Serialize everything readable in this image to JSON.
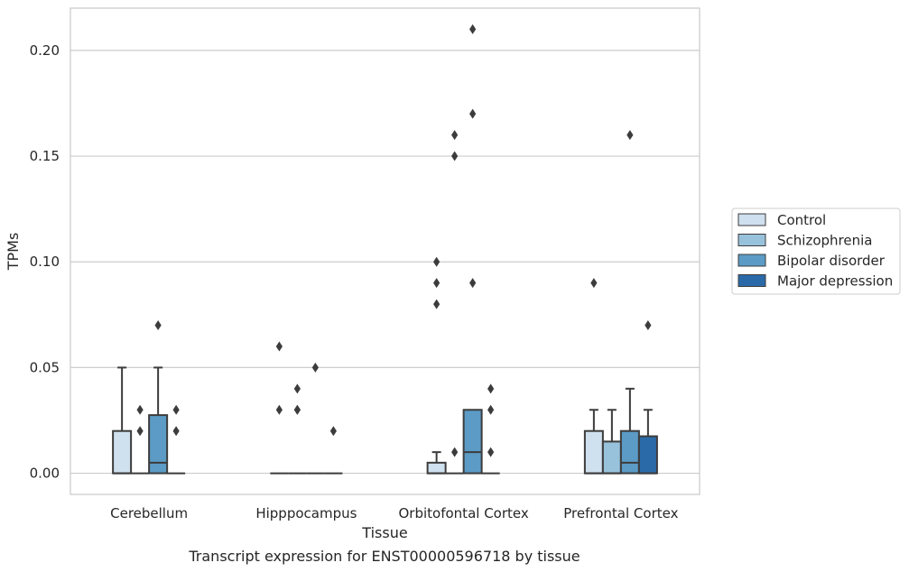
{
  "chart_data": {
    "type": "box",
    "xlabel": "Tissue",
    "ylabel": "TPMs",
    "caption": "Transcript expression for ENST00000596718 by tissue",
    "ylim": [
      -0.01,
      0.22
    ],
    "yticks": [
      0.0,
      0.05,
      0.1,
      0.15,
      0.2
    ],
    "ytick_labels": [
      "0.00",
      "0.05",
      "0.10",
      "0.15",
      "0.20"
    ],
    "grid": "y",
    "legend_position": "right",
    "categories": [
      "Cerebellum",
      "Hipppocampus",
      "Orbitofontal Cortex",
      "Prefrontal Cortex"
    ],
    "series": [
      {
        "name": "Control",
        "color": "#cfe0ef",
        "boxes": [
          {
            "q1": 0.0,
            "median": 0.0,
            "q3": 0.02,
            "whisker_low": 0.0,
            "whisker_high": 0.05,
            "outliers": []
          },
          {
            "q1": 0.0,
            "median": 0.0,
            "q3": 0.0,
            "whisker_low": 0.0,
            "whisker_high": 0.0,
            "outliers": [
              0.03,
              0.06
            ]
          },
          {
            "q1": 0.0,
            "median": 0.0,
            "q3": 0.005,
            "whisker_low": 0.0,
            "whisker_high": 0.01,
            "outliers": [
              0.08,
              0.09,
              0.1
            ]
          },
          {
            "q1": 0.0,
            "median": 0.0,
            "q3": 0.02,
            "whisker_low": 0.0,
            "whisker_high": 0.03,
            "outliers": [
              0.09
            ]
          }
        ]
      },
      {
        "name": "Schizophrenia",
        "color": "#98c2db",
        "boxes": [
          {
            "q1": 0.0,
            "median": 0.0,
            "q3": 0.0,
            "whisker_low": 0.0,
            "whisker_high": 0.0,
            "outliers": [
              0.02,
              0.03
            ]
          },
          {
            "q1": 0.0,
            "median": 0.0,
            "q3": 0.0,
            "whisker_low": 0.0,
            "whisker_high": 0.0,
            "outliers": [
              0.03,
              0.03,
              0.04
            ]
          },
          {
            "q1": 0.0,
            "median": 0.0,
            "q3": 0.0,
            "whisker_low": 0.0,
            "whisker_high": 0.0,
            "outliers": [
              0.01,
              0.15,
              0.16
            ]
          },
          {
            "q1": 0.0,
            "median": 0.0,
            "q3": 0.015,
            "whisker_low": 0.0,
            "whisker_high": 0.03,
            "outliers": []
          }
        ]
      },
      {
        "name": "Bipolar disorder",
        "color": "#5b9bc6",
        "boxes": [
          {
            "q1": 0.0,
            "median": 0.005,
            "q3": 0.0275,
            "whisker_low": 0.0,
            "whisker_high": 0.05,
            "outliers": [
              0.07
            ]
          },
          {
            "q1": 0.0,
            "median": 0.0,
            "q3": 0.0,
            "whisker_low": 0.0,
            "whisker_high": 0.0,
            "outliers": [
              0.05
            ]
          },
          {
            "q1": 0.0,
            "median": 0.01,
            "q3": 0.03,
            "whisker_low": 0.0,
            "whisker_high": 0.03,
            "outliers": [
              0.09,
              0.17,
              0.21
            ]
          },
          {
            "q1": 0.0,
            "median": 0.005,
            "q3": 0.02,
            "whisker_low": 0.0,
            "whisker_high": 0.04,
            "outliers": [
              0.16
            ]
          }
        ]
      },
      {
        "name": "Major depression",
        "color": "#2b6aa8",
        "boxes": [
          {
            "q1": 0.0,
            "median": 0.0,
            "q3": 0.0,
            "whisker_low": 0.0,
            "whisker_high": 0.0,
            "outliers": [
              0.02,
              0.03
            ]
          },
          {
            "q1": 0.0,
            "median": 0.0,
            "q3": 0.0,
            "whisker_low": 0.0,
            "whisker_high": 0.0,
            "outliers": [
              0.02
            ]
          },
          {
            "q1": 0.0,
            "median": 0.0,
            "q3": 0.0,
            "whisker_low": 0.0,
            "whisker_high": 0.0,
            "outliers": [
              0.01,
              0.03,
              0.04
            ]
          },
          {
            "q1": 0.0,
            "median": 0.0,
            "q3": 0.0175,
            "whisker_low": 0.0,
            "whisker_high": 0.03,
            "outliers": [
              0.07
            ]
          }
        ]
      }
    ]
  }
}
